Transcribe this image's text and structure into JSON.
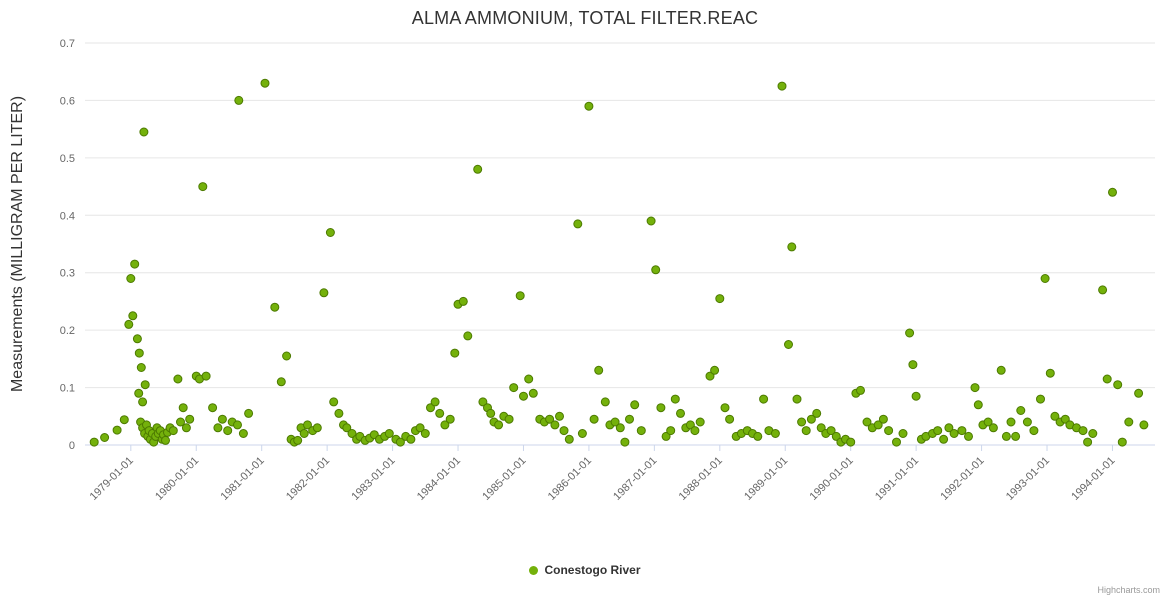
{
  "credits": "Highcharts.com",
  "chart_data": {
    "type": "scatter",
    "title": "ALMA AMMONIUM, TOTAL FILTER.REAC",
    "xlabel": "",
    "ylabel": "Measurements (MILLIGRAM PER LITER)",
    "ylim": [
      0,
      0.7
    ],
    "xlim": [
      1978.3,
      1994.65
    ],
    "grid": "horizontal",
    "legend_position": "bottom-center",
    "background_color": "#ffffff",
    "gridline_color": "#e6e6e6",
    "axis_line_color": "#ccd6eb",
    "axis_label_color": "#666666",
    "y_ticks": [
      0,
      0.1,
      0.2,
      0.3,
      0.4,
      0.5,
      0.6,
      0.7
    ],
    "y_tick_labels": [
      "0",
      "0.1",
      "0.2",
      "0.3",
      "0.4",
      "0.5",
      "0.6",
      "0.7"
    ],
    "x_ticks": [
      1979,
      1980,
      1981,
      1982,
      1983,
      1984,
      1985,
      1986,
      1987,
      1988,
      1989,
      1990,
      1991,
      1992,
      1993,
      1994
    ],
    "x_tick_labels": [
      "1979-01-01",
      "1980-01-01",
      "1981-01-01",
      "1982-01-01",
      "1983-01-01",
      "1984-01-01",
      "1985-01-01",
      "1986-01-01",
      "1987-01-01",
      "1988-01-01",
      "1989-01-01",
      "1990-01-01",
      "1991-01-01",
      "1992-01-01",
      "1993-01-01",
      "1994-01-01"
    ],
    "series": [
      {
        "name": "Conestogo River",
        "color": "#74b10b",
        "border_color": "#4c7a00",
        "marker_radius": 4,
        "points": [
          [
            1978.44,
            0.005
          ],
          [
            1978.6,
            0.013
          ],
          [
            1978.79,
            0.026
          ],
          [
            1978.9,
            0.044
          ],
          [
            1978.97,
            0.21
          ],
          [
            1979.0,
            0.29
          ],
          [
            1979.03,
            0.225
          ],
          [
            1979.06,
            0.315
          ],
          [
            1979.1,
            0.185
          ],
          [
            1979.12,
            0.09
          ],
          [
            1979.13,
            0.16
          ],
          [
            1979.16,
            0.135
          ],
          [
            1979.18,
            0.075
          ],
          [
            1979.2,
            0.545
          ],
          [
            1979.22,
            0.105
          ],
          [
            1979.15,
            0.04
          ],
          [
            1979.18,
            0.03
          ],
          [
            1979.21,
            0.02
          ],
          [
            1979.24,
            0.035
          ],
          [
            1979.26,
            0.015
          ],
          [
            1979.28,
            0.025
          ],
          [
            1979.3,
            0.01
          ],
          [
            1979.33,
            0.02
          ],
          [
            1979.35,
            0.005
          ],
          [
            1979.38,
            0.015
          ],
          [
            1979.4,
            0.03
          ],
          [
            1979.42,
            0.02
          ],
          [
            1979.45,
            0.025
          ],
          [
            1979.48,
            0.01
          ],
          [
            1979.5,
            0.018
          ],
          [
            1979.53,
            0.008
          ],
          [
            1979.56,
            0.022
          ],
          [
            1979.6,
            0.03
          ],
          [
            1979.65,
            0.025
          ],
          [
            1979.72,
            0.115
          ],
          [
            1979.76,
            0.04
          ],
          [
            1979.8,
            0.065
          ],
          [
            1979.85,
            0.03
          ],
          [
            1979.9,
            0.045
          ],
          [
            1980.0,
            0.12
          ],
          [
            1980.05,
            0.115
          ],
          [
            1980.1,
            0.45
          ],
          [
            1980.15,
            0.12
          ],
          [
            1980.25,
            0.065
          ],
          [
            1980.33,
            0.03
          ],
          [
            1980.4,
            0.045
          ],
          [
            1980.48,
            0.025
          ],
          [
            1980.55,
            0.04
          ],
          [
            1980.63,
            0.035
          ],
          [
            1980.65,
            0.6
          ],
          [
            1980.72,
            0.02
          ],
          [
            1980.8,
            0.055
          ],
          [
            1981.05,
            0.63
          ],
          [
            1981.2,
            0.24
          ],
          [
            1981.3,
            0.11
          ],
          [
            1981.38,
            0.155
          ],
          [
            1981.45,
            0.01
          ],
          [
            1981.5,
            0.005
          ],
          [
            1981.55,
            0.008
          ],
          [
            1981.6,
            0.03
          ],
          [
            1981.65,
            0.02
          ],
          [
            1981.7,
            0.035
          ],
          [
            1981.78,
            0.025
          ],
          [
            1981.85,
            0.03
          ],
          [
            1981.95,
            0.265
          ],
          [
            1982.05,
            0.37
          ],
          [
            1982.1,
            0.075
          ],
          [
            1982.18,
            0.055
          ],
          [
            1982.25,
            0.035
          ],
          [
            1982.3,
            0.03
          ],
          [
            1982.38,
            0.02
          ],
          [
            1982.45,
            0.01
          ],
          [
            1982.5,
            0.015
          ],
          [
            1982.58,
            0.008
          ],
          [
            1982.65,
            0.012
          ],
          [
            1982.72,
            0.018
          ],
          [
            1982.8,
            0.01
          ],
          [
            1982.88,
            0.015
          ],
          [
            1982.95,
            0.02
          ],
          [
            1983.05,
            0.01
          ],
          [
            1983.12,
            0.005
          ],
          [
            1983.2,
            0.015
          ],
          [
            1983.28,
            0.01
          ],
          [
            1983.35,
            0.025
          ],
          [
            1983.42,
            0.03
          ],
          [
            1983.5,
            0.02
          ],
          [
            1983.58,
            0.065
          ],
          [
            1983.65,
            0.075
          ],
          [
            1983.72,
            0.055
          ],
          [
            1983.8,
            0.035
          ],
          [
            1983.88,
            0.045
          ],
          [
            1983.95,
            0.16
          ],
          [
            1984.0,
            0.245
          ],
          [
            1984.08,
            0.25
          ],
          [
            1984.15,
            0.19
          ],
          [
            1984.3,
            0.48
          ],
          [
            1984.38,
            0.075
          ],
          [
            1984.45,
            0.065
          ],
          [
            1984.5,
            0.055
          ],
          [
            1984.55,
            0.04
          ],
          [
            1984.62,
            0.035
          ],
          [
            1984.7,
            0.05
          ],
          [
            1984.78,
            0.045
          ],
          [
            1984.85,
            0.1
          ],
          [
            1984.95,
            0.26
          ],
          [
            1985.0,
            0.085
          ],
          [
            1985.08,
            0.115
          ],
          [
            1985.15,
            0.09
          ],
          [
            1985.25,
            0.045
          ],
          [
            1985.32,
            0.04
          ],
          [
            1985.4,
            0.045
          ],
          [
            1985.48,
            0.035
          ],
          [
            1985.55,
            0.05
          ],
          [
            1985.62,
            0.025
          ],
          [
            1985.7,
            0.01
          ],
          [
            1985.83,
            0.385
          ],
          [
            1985.9,
            0.02
          ],
          [
            1986.0,
            0.59
          ],
          [
            1986.08,
            0.045
          ],
          [
            1986.15,
            0.13
          ],
          [
            1986.25,
            0.075
          ],
          [
            1986.32,
            0.035
          ],
          [
            1986.4,
            0.04
          ],
          [
            1986.48,
            0.03
          ],
          [
            1986.55,
            0.005
          ],
          [
            1986.62,
            0.045
          ],
          [
            1986.7,
            0.07
          ],
          [
            1986.8,
            0.025
          ],
          [
            1986.95,
            0.39
          ],
          [
            1987.02,
            0.305
          ],
          [
            1987.1,
            0.065
          ],
          [
            1987.18,
            0.015
          ],
          [
            1987.25,
            0.025
          ],
          [
            1987.32,
            0.08
          ],
          [
            1987.4,
            0.055
          ],
          [
            1987.48,
            0.03
          ],
          [
            1987.55,
            0.035
          ],
          [
            1987.62,
            0.025
          ],
          [
            1987.7,
            0.04
          ],
          [
            1987.85,
            0.12
          ],
          [
            1987.92,
            0.13
          ],
          [
            1988.0,
            0.255
          ],
          [
            1988.08,
            0.065
          ],
          [
            1988.15,
            0.045
          ],
          [
            1988.25,
            0.015
          ],
          [
            1988.33,
            0.02
          ],
          [
            1988.42,
            0.025
          ],
          [
            1988.5,
            0.02
          ],
          [
            1988.58,
            0.015
          ],
          [
            1988.67,
            0.08
          ],
          [
            1988.75,
            0.025
          ],
          [
            1988.85,
            0.02
          ],
          [
            1988.95,
            0.625
          ],
          [
            1989.05,
            0.175
          ],
          [
            1989.1,
            0.345
          ],
          [
            1989.18,
            0.08
          ],
          [
            1989.25,
            0.04
          ],
          [
            1989.32,
            0.025
          ],
          [
            1989.4,
            0.045
          ],
          [
            1989.48,
            0.055
          ],
          [
            1989.55,
            0.03
          ],
          [
            1989.62,
            0.02
          ],
          [
            1989.7,
            0.025
          ],
          [
            1989.78,
            0.015
          ],
          [
            1989.85,
            0.005
          ],
          [
            1989.92,
            0.01
          ],
          [
            1990.0,
            0.005
          ],
          [
            1990.08,
            0.09
          ],
          [
            1990.15,
            0.095
          ],
          [
            1990.25,
            0.04
          ],
          [
            1990.33,
            0.03
          ],
          [
            1990.42,
            0.035
          ],
          [
            1990.5,
            0.045
          ],
          [
            1990.58,
            0.025
          ],
          [
            1990.7,
            0.005
          ],
          [
            1990.8,
            0.02
          ],
          [
            1990.9,
            0.195
          ],
          [
            1990.95,
            0.14
          ],
          [
            1991.0,
            0.085
          ],
          [
            1991.08,
            0.01
          ],
          [
            1991.15,
            0.015
          ],
          [
            1991.25,
            0.02
          ],
          [
            1991.33,
            0.025
          ],
          [
            1991.42,
            0.01
          ],
          [
            1991.5,
            0.03
          ],
          [
            1991.58,
            0.02
          ],
          [
            1991.7,
            0.025
          ],
          [
            1991.8,
            0.015
          ],
          [
            1991.9,
            0.1
          ],
          [
            1991.95,
            0.07
          ],
          [
            1992.02,
            0.035
          ],
          [
            1992.1,
            0.04
          ],
          [
            1992.18,
            0.03
          ],
          [
            1992.3,
            0.13
          ],
          [
            1992.38,
            0.015
          ],
          [
            1992.45,
            0.04
          ],
          [
            1992.52,
            0.015
          ],
          [
            1992.6,
            0.06
          ],
          [
            1992.7,
            0.04
          ],
          [
            1992.8,
            0.025
          ],
          [
            1992.9,
            0.08
          ],
          [
            1992.97,
            0.29
          ],
          [
            1993.05,
            0.125
          ],
          [
            1993.12,
            0.05
          ],
          [
            1993.2,
            0.04
          ],
          [
            1993.28,
            0.045
          ],
          [
            1993.35,
            0.035
          ],
          [
            1993.45,
            0.03
          ],
          [
            1993.55,
            0.025
          ],
          [
            1993.62,
            0.005
          ],
          [
            1993.7,
            0.02
          ],
          [
            1993.85,
            0.27
          ],
          [
            1993.92,
            0.115
          ],
          [
            1994.0,
            0.44
          ],
          [
            1994.08,
            0.105
          ],
          [
            1994.15,
            0.005
          ],
          [
            1994.25,
            0.04
          ],
          [
            1994.4,
            0.09
          ],
          [
            1994.48,
            0.035
          ]
        ]
      }
    ]
  }
}
